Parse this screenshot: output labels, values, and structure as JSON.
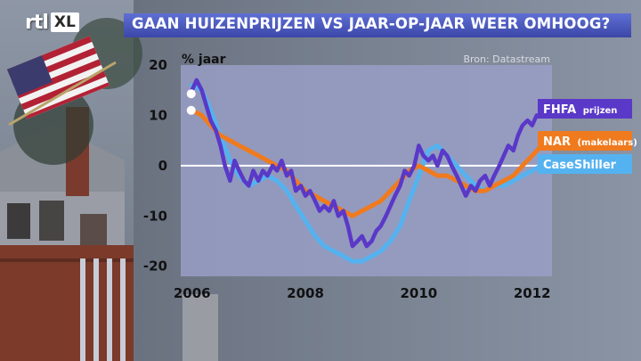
{
  "broadcaster": {
    "logo_main": "rtl",
    "logo_sub": "XL"
  },
  "title": "GAAN HUIZENPRIJZEN VS JAAR-OP-JAAR WEER OMHOOG?",
  "colors": {
    "title_bar": "#4a56c0",
    "fhfa": "#5a38c8",
    "nar": "#f07a1e",
    "caseshiller": "#55b2f0",
    "plot_bg": "#9aa0c8",
    "legend_fhfa_bg": "#5a38c8",
    "legend_nar_bg": "#f07a1e",
    "legend_cs_bg": "#55b2f0"
  },
  "chart_data": {
    "type": "line",
    "source_label": "Bron: Datastream",
    "ylabel": "% jaar",
    "xlim": [
      2005.8,
      2012.35
    ],
    "ylim": [
      -22,
      20
    ],
    "x_ticks": [
      "2006",
      "2008",
      "2010",
      "2012"
    ],
    "y_ticks": [
      "20",
      "10",
      "0",
      "-10",
      "-20"
    ],
    "zero_line": true,
    "series": [
      {
        "name": "FHFA",
        "name_suffix": "prijzen",
        "x": [
          2006.0,
          2006.08,
          2006.17,
          2006.25,
          2006.33,
          2006.42,
          2006.5,
          2006.58,
          2006.67,
          2006.75,
          2006.83,
          2006.92,
          2007.0,
          2007.08,
          2007.17,
          2007.25,
          2007.33,
          2007.42,
          2007.5,
          2007.58,
          2007.67,
          2007.75,
          2007.83,
          2007.92,
          2008.0,
          2008.08,
          2008.17,
          2008.25,
          2008.33,
          2008.42,
          2008.5,
          2008.58,
          2008.67,
          2008.75,
          2008.83,
          2008.92,
          2009.0,
          2009.08,
          2009.17,
          2009.25,
          2009.33,
          2009.42,
          2009.5,
          2009.58,
          2009.67,
          2009.75,
          2009.83,
          2009.92,
          2010.0,
          2010.08,
          2010.17,
          2010.25,
          2010.33,
          2010.42,
          2010.5,
          2010.58,
          2010.67,
          2010.75,
          2010.83,
          2010.92,
          2011.0,
          2011.08,
          2011.17,
          2011.25,
          2011.33,
          2011.42,
          2011.5,
          2011.58,
          2011.67,
          2011.75,
          2011.83,
          2011.92,
          2012.0,
          2012.08,
          2012.17
        ],
        "values": [
          15,
          17,
          15,
          12,
          9,
          7,
          4,
          0,
          -3,
          1,
          -1,
          -3,
          -4,
          -1,
          -3,
          -1,
          -2,
          0,
          -1,
          1,
          -2,
          -1,
          -5,
          -4,
          -6,
          -5,
          -7,
          -9,
          -8,
          -9,
          -7,
          -10,
          -9,
          -12,
          -16,
          -15,
          -14,
          -16,
          -15,
          -13,
          -12,
          -10,
          -8,
          -6,
          -4,
          -1,
          -2,
          0,
          4,
          2,
          1,
          2,
          0,
          3,
          2,
          0,
          -2,
          -4,
          -6,
          -4,
          -5,
          -3,
          -2,
          -4,
          -2,
          0,
          2,
          4,
          3,
          6,
          8,
          9,
          8,
          10,
          10
        ]
      },
      {
        "name": "NAR",
        "name_suffix": "(makelaars)",
        "x": [
          2006.0,
          2006.17,
          2006.33,
          2006.5,
          2006.67,
          2006.83,
          2007.0,
          2007.17,
          2007.33,
          2007.5,
          2007.67,
          2007.83,
          2008.0,
          2008.17,
          2008.33,
          2008.5,
          2008.67,
          2008.83,
          2009.0,
          2009.17,
          2009.33,
          2009.5,
          2009.67,
          2009.83,
          2010.0,
          2010.17,
          2010.33,
          2010.5,
          2010.67,
          2010.83,
          2011.0,
          2011.17,
          2011.33,
          2011.5,
          2011.67,
          2011.83,
          2012.0,
          2012.17
        ],
        "values": [
          11,
          10,
          8,
          6,
          5,
          4,
          3,
          2,
          1,
          0,
          -1,
          -3,
          -5,
          -6,
          -7,
          -8,
          -9,
          -10,
          -9,
          -8,
          -7,
          -5,
          -3,
          -1,
          0,
          -1,
          -2,
          -2,
          -3,
          -4,
          -5,
          -5,
          -4,
          -3,
          -2,
          0,
          2,
          4
        ]
      },
      {
        "name": "CaseShiller",
        "name_suffix": "",
        "x": [
          2006.0,
          2006.17,
          2006.33,
          2006.5,
          2006.67,
          2006.83,
          2007.0,
          2007.17,
          2007.33,
          2007.5,
          2007.67,
          2007.83,
          2008.0,
          2008.17,
          2008.33,
          2008.5,
          2008.67,
          2008.83,
          2009.0,
          2009.17,
          2009.33,
          2009.5,
          2009.67,
          2009.83,
          2010.0,
          2010.17,
          2010.33,
          2010.5,
          2010.67,
          2010.83,
          2011.0,
          2011.17,
          2011.33,
          2011.5,
          2011.67,
          2011.83,
          2012.0,
          2012.17
        ],
        "values": [
          16,
          15,
          11,
          6,
          1,
          -2,
          -4,
          -3,
          -2,
          -3,
          -5,
          -8,
          -11,
          -14,
          -16,
          -17,
          -18,
          -19,
          -19,
          -18,
          -17,
          -15,
          -12,
          -7,
          -2,
          3,
          4,
          2,
          0,
          -2,
          -4,
          -5,
          -4,
          -4,
          -3,
          -2,
          -1,
          0
        ]
      }
    ]
  }
}
